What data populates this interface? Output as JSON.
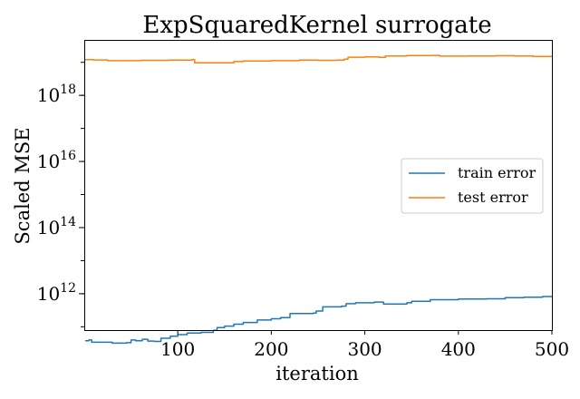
{
  "chart_data": {
    "type": "line",
    "title": "ExpSquaredKernel surrogate",
    "xlabel": "iteration",
    "ylabel": "Scaled MSE",
    "xlim": [
      1,
      500
    ],
    "ylim_log10": [
      10.9,
      19.65
    ],
    "yscale": "log",
    "xticks": [
      100,
      200,
      300,
      400,
      500
    ],
    "yticks": [
      {
        "exp": 12,
        "base": "10",
        "sup": "12"
      },
      {
        "exp": 14,
        "base": "10",
        "sup": "14"
      },
      {
        "exp": 16,
        "base": "10",
        "sup": "16"
      },
      {
        "exp": 18,
        "base": "10",
        "sup": "18"
      }
    ],
    "grid": false,
    "legend": {
      "position": "center-right",
      "entries": [
        "train error",
        "test error"
      ]
    },
    "series": [
      {
        "name": "train error",
        "color": "#1f77b4",
        "points": [
          [
            1,
            38000000000.0
          ],
          [
            5,
            40000000000.0
          ],
          [
            8,
            34000000000.0
          ],
          [
            30,
            32000000000.0
          ],
          [
            45,
            33000000000.0
          ],
          [
            50,
            40000000000.0
          ],
          [
            55,
            38000000000.0
          ],
          [
            62,
            42000000000.0
          ],
          [
            68,
            37000000000.0
          ],
          [
            75,
            36000000000.0
          ],
          [
            82,
            45000000000.0
          ],
          [
            92,
            52000000000.0
          ],
          [
            100,
            58000000000.0
          ],
          [
            110,
            65000000000.0
          ],
          [
            125,
            68000000000.0
          ],
          [
            138,
            78000000000.0
          ],
          [
            142,
            95000000000.0
          ],
          [
            150,
            105000000000.0
          ],
          [
            160,
            120000000000.0
          ],
          [
            170,
            135000000000.0
          ],
          [
            185,
            160000000000.0
          ],
          [
            200,
            175000000000.0
          ],
          [
            210,
            190000000000.0
          ],
          [
            220,
            250000000000.0
          ],
          [
            245,
            260000000000.0
          ],
          [
            248,
            300000000000.0
          ],
          [
            255,
            400000000000.0
          ],
          [
            275,
            420000000000.0
          ],
          [
            280,
            500000000000.0
          ],
          [
            290,
            530000000000.0
          ],
          [
            310,
            560000000000.0
          ],
          [
            320,
            490000000000.0
          ],
          [
            345,
            530000000000.0
          ],
          [
            350,
            590000000000.0
          ],
          [
            370,
            660000000000.0
          ],
          [
            400,
            690000000000.0
          ],
          [
            430,
            700000000000.0
          ],
          [
            450,
            760000000000.0
          ],
          [
            470,
            780000000000.0
          ],
          [
            490,
            820000000000.0
          ],
          [
            500,
            860000000000.0
          ]
        ]
      },
      {
        "name": "test error",
        "color": "#ff7f0e",
        "points": [
          [
            1,
            1.2e+19
          ],
          [
            10,
            1.18e+19
          ],
          [
            25,
            1.12e+19
          ],
          [
            60,
            1.15e+19
          ],
          [
            90,
            1.17e+19
          ],
          [
            115,
            1.2e+19
          ],
          [
            118,
            9.6e+18
          ],
          [
            150,
            9.6e+18
          ],
          [
            160,
            1.05e+19
          ],
          [
            170,
            1.1e+19
          ],
          [
            200,
            1.12e+19
          ],
          [
            230,
            1.16e+19
          ],
          [
            250,
            1.15e+19
          ],
          [
            270,
            1.17e+19
          ],
          [
            278,
            1.25e+19
          ],
          [
            282,
            1.42e+19
          ],
          [
            300,
            1.45e+19
          ],
          [
            315,
            1.41e+19
          ],
          [
            322,
            1.55e+19
          ],
          [
            345,
            1.6e+19
          ],
          [
            370,
            1.62e+19
          ],
          [
            380,
            1.54e+19
          ],
          [
            410,
            1.56e+19
          ],
          [
            440,
            1.58e+19
          ],
          [
            460,
            1.55e+19
          ],
          [
            480,
            1.5e+19
          ],
          [
            500,
            1.45e+19
          ]
        ]
      }
    ]
  }
}
